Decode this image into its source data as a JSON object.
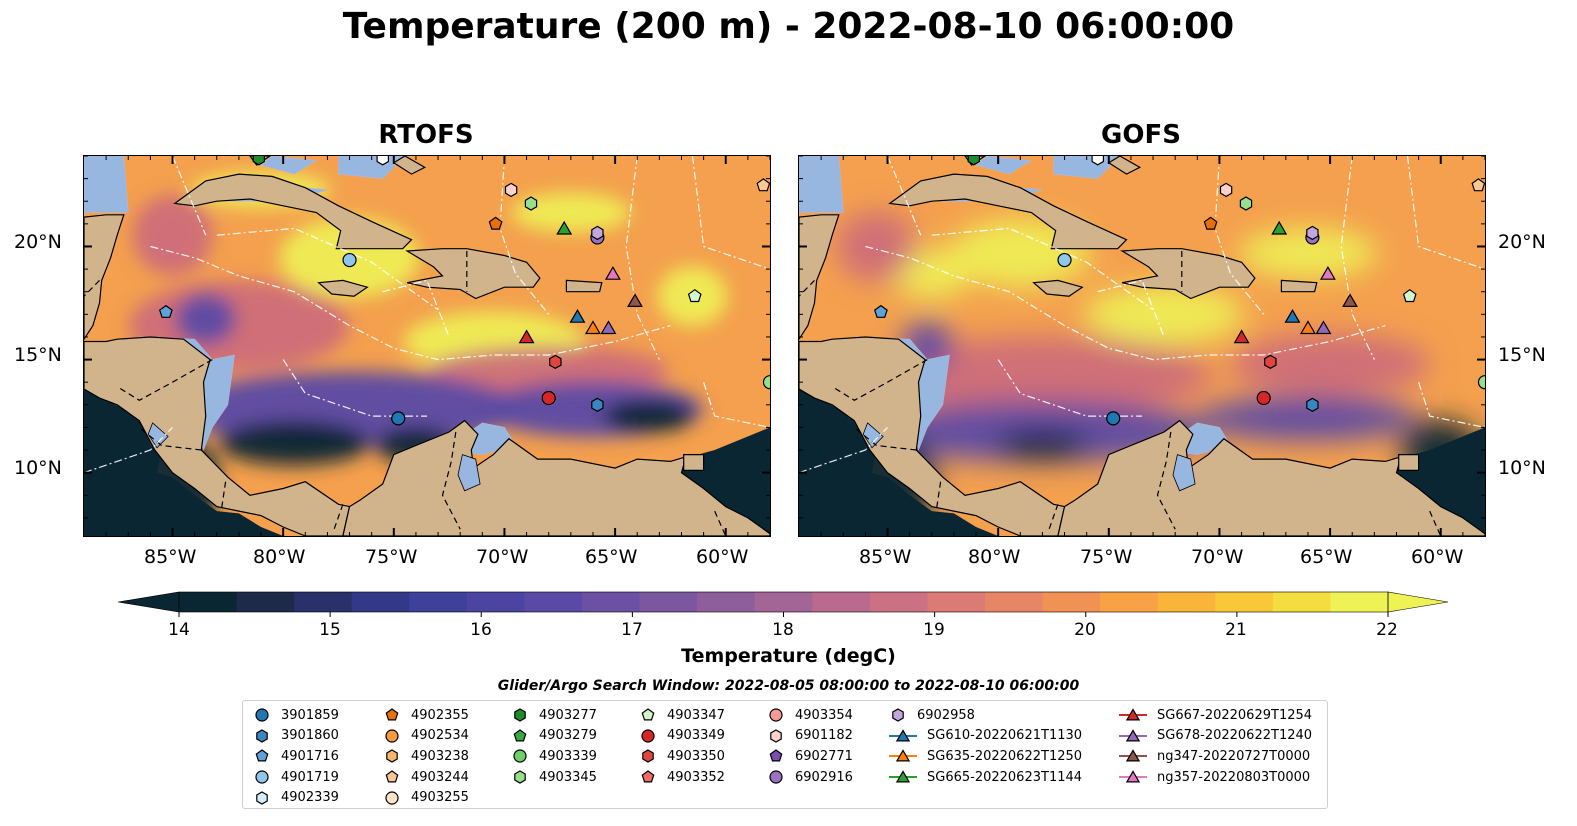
{
  "title": "Temperature (200 m) - 2022-08-10 06:00:00",
  "panels": [
    {
      "title": "RTOFS"
    },
    {
      "title": "GOFS"
    }
  ],
  "lon_ticks": [
    "85°W",
    "80°W",
    "75°W",
    "70°W",
    "65°W",
    "60°W"
  ],
  "lat_ticks": [
    "20°N",
    "15°N",
    "10°N"
  ],
  "colorbar": {
    "label": "Temperature (degC)",
    "ticks": [
      "14",
      "15",
      "16",
      "17",
      "18",
      "19",
      "20",
      "21",
      "22"
    ],
    "range": [
      14,
      22
    ],
    "colors": [
      "#0b2633",
      "#1d2a4a",
      "#29306a",
      "#343889",
      "#3f3f9c",
      "#4c44a3",
      "#5a4aa5",
      "#6b50a3",
      "#7c579f",
      "#8e5e9b",
      "#a36496",
      "#b96a8e",
      "#cc7184",
      "#dc7a76",
      "#e88566",
      "#f29154",
      "#f9a245",
      "#fbb43a",
      "#f9c838",
      "#f4dd3e",
      "#eef254"
    ]
  },
  "search_window": "Glider/Argo Search Window: 2022-08-05 08:00:00 to 2022-08-10 06:00:00",
  "legend": [
    [
      {
        "label": "3901859",
        "marker": "circle",
        "color": "#1f77b4"
      },
      {
        "label": "3901860",
        "marker": "hexagon",
        "color": "#3a86c0"
      },
      {
        "label": "4901716",
        "marker": "pentagon",
        "color": "#5da3da"
      },
      {
        "label": "4901719",
        "marker": "circle",
        "color": "#8ec7ea"
      },
      {
        "label": "4902339",
        "marker": "hexagon",
        "color": "#d7ecf8"
      }
    ],
    [
      {
        "label": "4902355",
        "marker": "pentagon",
        "color": "#e6700a"
      },
      {
        "label": "4902534",
        "marker": "circle",
        "color": "#f59a3e"
      },
      {
        "label": "4903238",
        "marker": "hexagon",
        "color": "#f8b36c"
      },
      {
        "label": "4903244",
        "marker": "pentagon",
        "color": "#fbc894"
      },
      {
        "label": "4903255",
        "marker": "circle",
        "color": "#fde3c8"
      }
    ],
    [
      {
        "label": "4903277",
        "marker": "hexagon",
        "color": "#1d8c2c"
      },
      {
        "label": "4903279",
        "marker": "pentagon",
        "color": "#3aa845"
      },
      {
        "label": "4903339",
        "marker": "circle",
        "color": "#6fcc6a"
      },
      {
        "label": "4903345",
        "marker": "hexagon",
        "color": "#98df8a"
      },
      {
        "label": "",
        "marker": "",
        "color": ""
      }
    ],
    [
      {
        "label": "4903347",
        "marker": "pentagon",
        "color": "#d3f5cc"
      },
      {
        "label": "4903349",
        "marker": "circle",
        "color": "#d62728"
      },
      {
        "label": "4903350",
        "marker": "hexagon",
        "color": "#e0453f"
      },
      {
        "label": "4903352",
        "marker": "pentagon",
        "color": "#ee6b67"
      },
      {
        "label": "",
        "marker": "",
        "color": ""
      }
    ],
    [
      {
        "label": "4903354",
        "marker": "circle",
        "color": "#f59a96"
      },
      {
        "label": "6901182",
        "marker": "hexagon",
        "color": "#fcd2cf"
      },
      {
        "label": "6902771",
        "marker": "pentagon",
        "color": "#7b4fb0"
      },
      {
        "label": "6902916",
        "marker": "circle",
        "color": "#9a72c4"
      },
      {
        "label": "",
        "marker": "",
        "color": ""
      }
    ],
    [
      {
        "label": "6902958",
        "marker": "hexagon",
        "color": "#c2a6dd"
      },
      {
        "label": "SG610-20220621T1130",
        "marker": "triangle-line",
        "color": "#1f77b4"
      },
      {
        "label": "SG635-20220622T1250",
        "marker": "triangle-line",
        "color": "#ff7f0e"
      },
      {
        "label": "SG665-20220623T1144",
        "marker": "triangle-line",
        "color": "#2ca02c"
      },
      {
        "label": "",
        "marker": "",
        "color": ""
      }
    ],
    [
      {
        "label": "SG667-20220629T1254",
        "marker": "triangle-line",
        "color": "#d62728"
      },
      {
        "label": "SG678-20220622T1240",
        "marker": "triangle-line",
        "color": "#9467bd"
      },
      {
        "label": "ng347-20220727T0000",
        "marker": "triangle-line",
        "color": "#8c564b"
      },
      {
        "label": "ng357-20220803T0000",
        "marker": "triangle-line",
        "color": "#e377c2"
      },
      {
        "label": "",
        "marker": "",
        "color": ""
      }
    ]
  ],
  "map_colors": {
    "land": "#d2b48c",
    "shelf": "#97b6e0",
    "warm": "#f4a04e",
    "hot": "#eef254",
    "cool": "#5a4aa5",
    "cold": "#0b2633"
  }
}
